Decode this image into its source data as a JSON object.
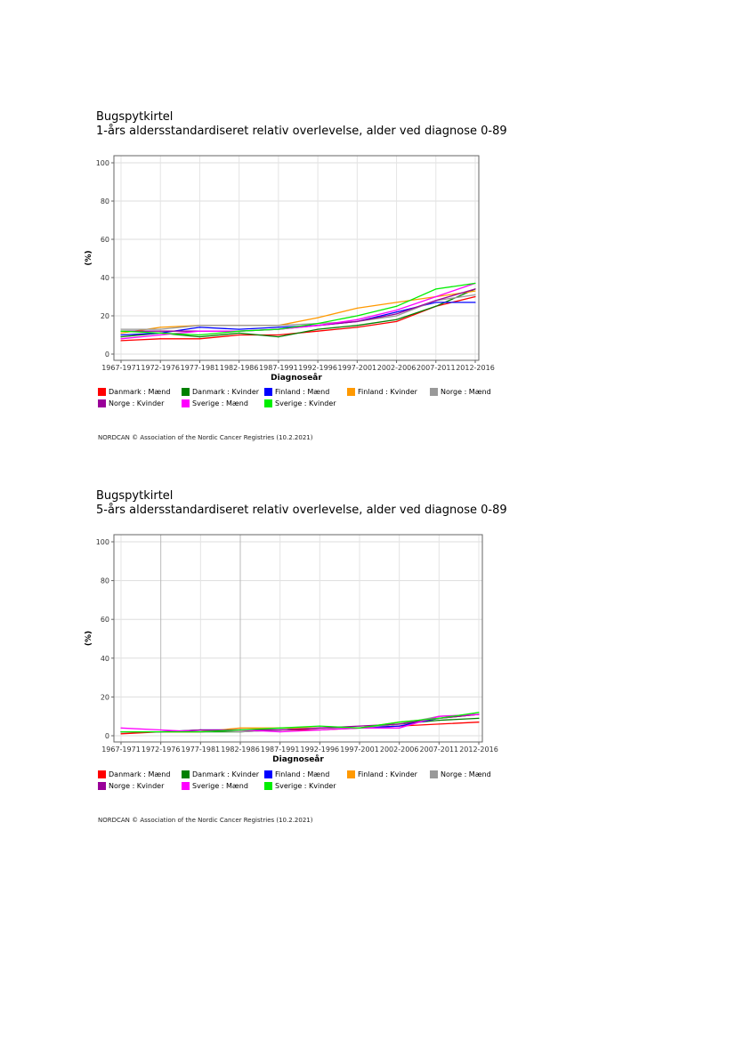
{
  "chart_data": [
    {
      "type": "line",
      "title": "Bugspytkirtel",
      "subtitle": "1-års aldersstandardiseret relativ overlevelse, alder ved diagnose 0-89",
      "xlabel": "Diagnoseår",
      "ylabel": "(%)",
      "ylim": [
        0,
        100
      ],
      "yticks": [
        0,
        20,
        40,
        60,
        80,
        100
      ],
      "grid": true,
      "legend_position": "bottom",
      "categories": [
        "1967-1971",
        "1972-1976",
        "1977-1981",
        "1982-1986",
        "1987-1991",
        "1992-1996",
        "1997-2001",
        "2002-2006",
        "2007-2011",
        "2012-2016"
      ],
      "series": [
        {
          "name": "Danmark : Mænd",
          "color": "#ff0000",
          "values": [
            7,
            8,
            8,
            10,
            10,
            12,
            14,
            17,
            25,
            30
          ]
        },
        {
          "name": "Danmark : Kvinder",
          "color": "#008000",
          "values": [
            9,
            11,
            9,
            11,
            9,
            13,
            15,
            18,
            25,
            34
          ]
        },
        {
          "name": "Finland : Mænd",
          "color": "#0000ff",
          "values": [
            10,
            11,
            14,
            13,
            14,
            15,
            17,
            22,
            27,
            27
          ]
        },
        {
          "name": "Finland : Kvinder",
          "color": "#ff9900",
          "values": [
            11,
            14,
            15,
            15,
            15,
            19,
            24,
            27,
            30,
            33
          ]
        },
        {
          "name": "Norge : Mænd",
          "color": "#999999",
          "values": [
            13,
            13,
            15,
            15,
            15,
            16,
            17,
            20,
            28,
            31
          ]
        },
        {
          "name": "Norge : Kvinder",
          "color": "#990099",
          "values": [
            12,
            12,
            12,
            12,
            13,
            15,
            17,
            21,
            28,
            34
          ]
        },
        {
          "name": "Sverige : Mænd",
          "color": "#ff00ff",
          "values": [
            8,
            10,
            12,
            12,
            13,
            15,
            18,
            23,
            30,
            37
          ]
        },
        {
          "name": "Sverige : Kvinder",
          "color": "#00ee00",
          "values": [
            12,
            11,
            10,
            12,
            13,
            16,
            20,
            25,
            34,
            37
          ]
        }
      ]
    },
    {
      "type": "line",
      "title": "Bugspytkirtel",
      "subtitle": "5-års aldersstandardiseret relativ overlevelse, alder ved diagnose 0-89",
      "xlabel": "Diagnoseår",
      "ylabel": "(%)",
      "ylim": [
        0,
        100
      ],
      "yticks": [
        0,
        20,
        40,
        60,
        80,
        100
      ],
      "grid": true,
      "legend_position": "bottom",
      "categories": [
        "1967-1971",
        "1972-1976",
        "1977-1981",
        "1982-1986",
        "1987-1991",
        "1992-1996",
        "1997-2001",
        "2002-2006",
        "2007-2011",
        "2012-2016"
      ],
      "series": [
        {
          "name": "Danmark : Mænd",
          "color": "#ff0000",
          "values": [
            1,
            2,
            2,
            3,
            3,
            3,
            4,
            5,
            6,
            7
          ]
        },
        {
          "name": "Danmark : Kvinder",
          "color": "#008000",
          "values": [
            2,
            2,
            2,
            2,
            3,
            4,
            4,
            6,
            8,
            9
          ]
        },
        {
          "name": "Finland : Mænd",
          "color": "#0000ff",
          "values": [
            2,
            2,
            3,
            3,
            3,
            4,
            4,
            5,
            9,
            11
          ]
        },
        {
          "name": "Finland : Kvinder",
          "color": "#ff9900",
          "values": [
            2,
            2,
            2,
            4,
            4,
            4,
            4,
            7,
            9,
            11
          ]
        },
        {
          "name": "Norge : Mænd",
          "color": "#999999",
          "values": [
            2,
            2,
            3,
            2,
            3,
            4,
            4,
            6,
            10,
            11
          ]
        },
        {
          "name": "Norge : Kvinder",
          "color": "#990099",
          "values": [
            2,
            2,
            3,
            3,
            3,
            4,
            5,
            6,
            9,
            11
          ]
        },
        {
          "name": "Sverige : Mænd",
          "color": "#ff00ff",
          "values": [
            4,
            3,
            2,
            3,
            2,
            3,
            4,
            4,
            10,
            11
          ]
        },
        {
          "name": "Sverige : Kvinder",
          "color": "#00ee00",
          "values": [
            2,
            2,
            2,
            3,
            4,
            5,
            4,
            7,
            9,
            12
          ]
        }
      ]
    }
  ],
  "legend_rows": [
    [
      "Danmark : Mænd",
      "Danmark : Kvinder",
      "Finland : Mænd",
      "Finland : Kvinder",
      "Norge : Mænd"
    ],
    [
      "Norge : Kvinder",
      "Sverige : Mænd",
      "Sverige : Kvinder"
    ]
  ],
  "footer": "NORDCAN © Association of the Nordic Cancer Registries (10.2.2021)"
}
